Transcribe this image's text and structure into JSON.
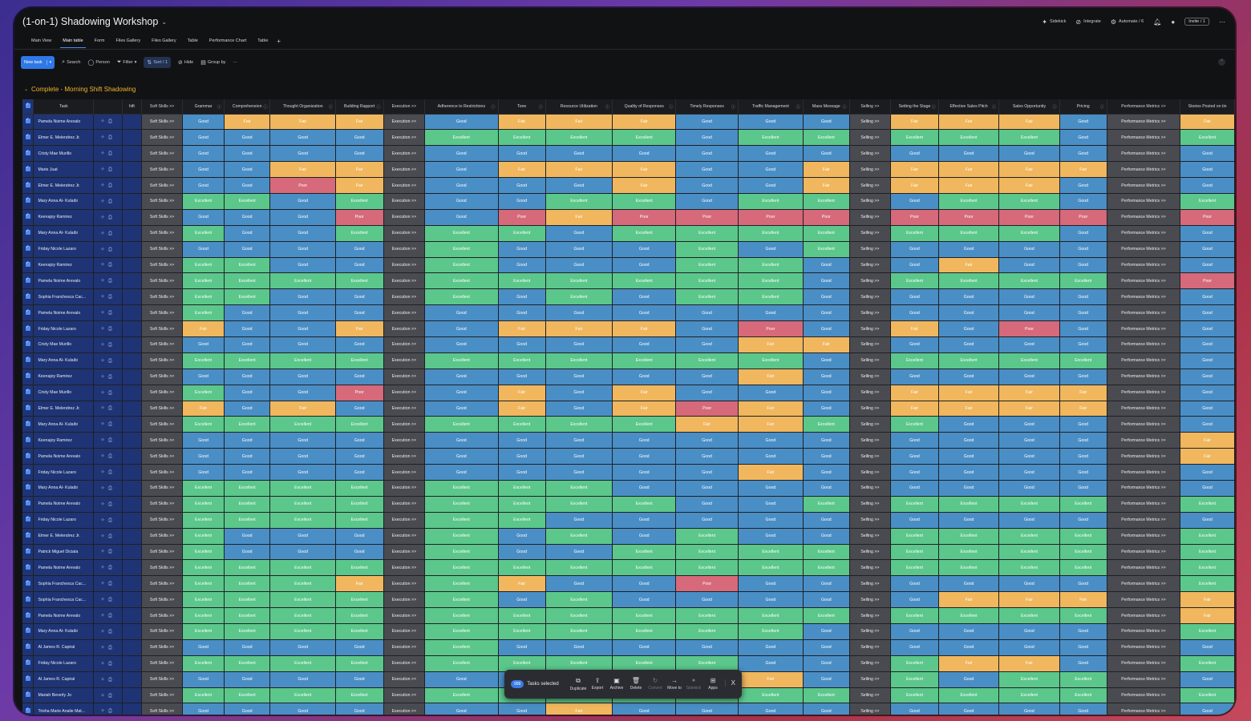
{
  "board": {
    "title": "(1-on-1) Shadowing Workshop",
    "views": [
      "Main View",
      "Main table",
      "Form",
      "Files Gallery",
      "Files Gallery",
      "Table",
      "Performance Chart",
      "Table"
    ],
    "active_view": "Main table",
    "top_actions": [
      {
        "icon": "sidekick-icon",
        "label": "Sidekick"
      },
      {
        "icon": "integrate-icon",
        "label": "Integrate"
      },
      {
        "icon": "automate-icon",
        "label": "Automate / 6"
      }
    ],
    "invite_label": "Invite / 1"
  },
  "toolbar": {
    "new_task": "New task",
    "search": "Search",
    "person": "Person",
    "filter": "Filter",
    "sort": "Sort / 1",
    "hide": "Hide",
    "group_by": "Group by"
  },
  "group": {
    "title": "Complete - Morning Shift Shadowing",
    "color": "#f0b429"
  },
  "columns": {
    "task": "Task",
    "shift": "hift",
    "soft_skills": "Soft Skills >>",
    "grammar": "Grammar",
    "comprehension": "Comprehension",
    "thought_org": "Thought Organization",
    "building_rapport": "Building Rapport",
    "execution": "Execution >>",
    "adherence": "Adherence to Restrictions",
    "tone": "Tone",
    "resource": "Resource Utilization",
    "quality": "Quality of Responses",
    "timely": "Timely Responses",
    "traffic": "Traffic Management",
    "mass_message": "Mass Message",
    "selling": "Selling >>",
    "setting_stage": "Setting the Stage",
    "sales_pitch": "Effective Sales Pitch",
    "sales_opp": "Sales Opportunity",
    "pricing": "Pricing",
    "performance": "Performance Metrics >>",
    "stories": "Stories Posted on tin"
  },
  "section_labels": {
    "soft": "Soft Skills >>",
    "exec": "Execution >>",
    "sell": "Selling >>",
    "perf": "Performance Metrics >>"
  },
  "status_legend": {
    "G": "Good",
    "E": "Excellent",
    "F": "Fair",
    "P": "Poor"
  },
  "status_colors": {
    "Good": "#4a8ec6",
    "Excellent": "#5bc78b",
    "Fair": "#f0b75e",
    "Poor": "#d6697a"
  },
  "rows": [
    {
      "name": "Pamela Noime Arevalo",
      "r": "GFFFGFFFGGGFFFGF"
    },
    {
      "name": "Elmer E. Melendrez Jr.",
      "r": "GGGGEEEEGEEEEEGE"
    },
    {
      "name": "Cristy Mae Murillo",
      "r": "GGGGGGGGGGGGGGGG"
    },
    {
      "name": "Marie Juat",
      "r": "GGFFGFFFGGFFFFFG"
    },
    {
      "name": "Elmer E. Melendrez Jr.",
      "r": "GGPFGGGFGGFFFFGG"
    },
    {
      "name": "Mary Anna Al- Kulaibi",
      "r": "EEGEGGEEGEEGEEGE"
    },
    {
      "name": "Keenajoy Ramirez",
      "r": "GGGPGPFPPPPPPPPP"
    },
    {
      "name": "Mary Anna Al- Kulaibi",
      "r": "EGGEEEGEEEEEEEGG"
    },
    {
      "name": "Friday Nicole Lazaro",
      "r": "GGGGEGGGEGEGGGGG"
    },
    {
      "name": "Keenajoy Ramirez",
      "r": "EEGGEGGGEEGGFGGG"
    },
    {
      "name": "Pamela Noime Arevalo",
      "r": "EEEEEEEEEEGEEEEP"
    },
    {
      "name": "Sophia Franchesca Cac...",
      "r": "EEGGEGEGEEGGGGGG"
    },
    {
      "name": "Pamela Noime Arevalo",
      "r": "EGGGGGGGGGGGGGGG"
    },
    {
      "name": "Friday Nicole Lazaro",
      "r": "FGGFGFFFGPGFGPGG"
    },
    {
      "name": "Cristy Mae Murillo",
      "r": "GGGGGGGGGFFGGGGG"
    },
    {
      "name": "Mary Anna Al- Kulaibi",
      "r": "EEEEEEEEEEGEEEEG"
    },
    {
      "name": "Keenajoy Ramirez",
      "r": "GGGGGGGGGFGGGGGG"
    },
    {
      "name": "Cristy Mae Murillo",
      "r": "EGGPGFGFGGGFFFFG"
    },
    {
      "name": "Elmer E. Melendrez Jr.",
      "r": "FGFGGFGFPFGFFFFG"
    },
    {
      "name": "Mary Anna Al- Kulaibi",
      "r": "EEEEEEEEFFEEGGGG"
    },
    {
      "name": "Keenajoy Ramirez",
      "r": "GGGGGGGGGGGGGGGF"
    },
    {
      "name": "Pamela Noime Arevalo",
      "r": "GGGGGGGGGGGGGGGF"
    },
    {
      "name": "Friday Nicole Lazaro",
      "r": "GGGGGGGGGFGGGGGG"
    },
    {
      "name": "Mary Anna Al- Kulaibi",
      "r": "EEEEEEEGGGGGGGGG"
    },
    {
      "name": "Pamela Noime Arevalo",
      "r": "EEEEEEEEGGEEEEEE"
    },
    {
      "name": "Friday Nicole Lazaro",
      "r": "EEEEEEGGGGGGGGGG"
    },
    {
      "name": "Elmer E. Melendrez Jr.",
      "r": "EGGGEGEGEGGEEEEE"
    },
    {
      "name": "Patrick Miguel Diciata",
      "r": "EGGGEGGEEEEEEEEE"
    },
    {
      "name": "Pamela Noime Arevalo",
      "r": "EEEEEEEEEEEEEEEE"
    },
    {
      "name": "Sophia Franchesca Cac...",
      "r": "EEEFEFGGPGGGGGGE"
    },
    {
      "name": "Sophia Franchesca Cac...",
      "r": "EEEEEGEGGGGGFFFF"
    },
    {
      "name": "Pamela Noime Arevalo",
      "r": "EEEEEEEEEEEEEEEF"
    },
    {
      "name": "Mary Anna Al- Kulaibi",
      "r": "EEEEEEEEEEGGGGGE"
    },
    {
      "name": "Al James R. Capiral",
      "r": "GGGGEGGGGGGGGGGG"
    },
    {
      "name": "Friday Nicole Lazaro",
      "r": "EEEEEEEEEGGEFFGE"
    },
    {
      "name": "Al James R. Capiral",
      "r": "GGGGGGGGGFGEGEEG"
    },
    {
      "name": "Mariah Beverly Jo",
      "r": "EEEEEEEEEEEEEEEE"
    },
    {
      "name": "Trisha Marie Analie Mat...",
      "r": "GGGGGGFGGGGGGGGG"
    }
  ],
  "selection_bar": {
    "count": "999",
    "label": "Tasks selected",
    "actions": [
      {
        "icon": "duplicate-icon",
        "label": "Duplicate",
        "enabled": true
      },
      {
        "icon": "export-icon",
        "label": "Export",
        "enabled": true
      },
      {
        "icon": "archive-icon",
        "label": "Archive",
        "enabled": true
      },
      {
        "icon": "delete-icon",
        "label": "Delete",
        "enabled": true
      },
      {
        "icon": "convert-icon",
        "label": "Convert",
        "enabled": false
      },
      {
        "icon": "move-to-icon",
        "label": "Move to",
        "enabled": true
      },
      {
        "icon": "sidekick-icon",
        "label": "Sidekick",
        "enabled": false
      },
      {
        "icon": "apps-icon",
        "label": "Apps",
        "enabled": true
      }
    ],
    "close": "X"
  }
}
